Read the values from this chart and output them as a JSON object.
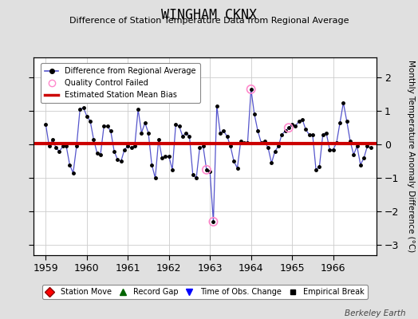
{
  "title": "WINGHAM CKNX",
  "subtitle": "Difference of Station Temperature Data from Regional Average",
  "ylabel": "Monthly Temperature Anomaly Difference (°C)",
  "footer": "Berkeley Earth",
  "xlim": [
    1958.7,
    1967.05
  ],
  "ylim": [
    -3.3,
    2.6
  ],
  "yticks": [
    -3,
    -2,
    -1,
    0,
    1,
    2
  ],
  "xticks": [
    1959,
    1960,
    1961,
    1962,
    1963,
    1964,
    1965,
    1966
  ],
  "bias_value": 0.04,
  "line_color": "#5555cc",
  "dot_color": "#000000",
  "qc_color": "#ff88cc",
  "bias_color": "#cc0000",
  "bg_color": "#e0e0e0",
  "plot_bg_color": "#ffffff",
  "grid_color": "#cccccc",
  "data": [
    [
      1959.0,
      0.6
    ],
    [
      1959.083,
      -0.05
    ],
    [
      1959.167,
      0.15
    ],
    [
      1959.25,
      -0.1
    ],
    [
      1959.333,
      -0.2
    ],
    [
      1959.417,
      -0.05
    ],
    [
      1959.5,
      -0.05
    ],
    [
      1959.583,
      -0.6
    ],
    [
      1959.667,
      -0.85
    ],
    [
      1959.75,
      -0.05
    ],
    [
      1959.833,
      1.05
    ],
    [
      1959.917,
      1.1
    ],
    [
      1960.0,
      0.85
    ],
    [
      1960.083,
      0.7
    ],
    [
      1960.167,
      0.15
    ],
    [
      1960.25,
      -0.25
    ],
    [
      1960.333,
      -0.3
    ],
    [
      1960.417,
      0.55
    ],
    [
      1960.5,
      0.55
    ],
    [
      1960.583,
      0.4
    ],
    [
      1960.667,
      -0.2
    ],
    [
      1960.75,
      -0.45
    ],
    [
      1960.833,
      -0.5
    ],
    [
      1960.917,
      -0.15
    ],
    [
      1961.0,
      -0.05
    ],
    [
      1961.083,
      -0.1
    ],
    [
      1961.167,
      -0.05
    ],
    [
      1961.25,
      1.05
    ],
    [
      1961.333,
      0.35
    ],
    [
      1961.417,
      0.65
    ],
    [
      1961.5,
      0.35
    ],
    [
      1961.583,
      -0.6
    ],
    [
      1961.667,
      -1.0
    ],
    [
      1961.75,
      0.15
    ],
    [
      1961.833,
      -0.4
    ],
    [
      1961.917,
      -0.35
    ],
    [
      1962.0,
      -0.35
    ],
    [
      1962.083,
      -0.75
    ],
    [
      1962.167,
      0.6
    ],
    [
      1962.25,
      0.55
    ],
    [
      1962.333,
      0.25
    ],
    [
      1962.417,
      0.35
    ],
    [
      1962.5,
      0.25
    ],
    [
      1962.583,
      -0.9
    ],
    [
      1962.667,
      -1.0
    ],
    [
      1962.75,
      -0.1
    ],
    [
      1962.833,
      -0.05
    ],
    [
      1962.917,
      -0.75
    ],
    [
      1963.0,
      -0.8
    ],
    [
      1963.083,
      -2.3
    ],
    [
      1963.167,
      1.15
    ],
    [
      1963.25,
      0.35
    ],
    [
      1963.333,
      0.4
    ],
    [
      1963.417,
      0.25
    ],
    [
      1963.5,
      -0.05
    ],
    [
      1963.583,
      -0.5
    ],
    [
      1963.667,
      -0.7
    ],
    [
      1963.75,
      0.1
    ],
    [
      1963.833,
      0.05
    ],
    [
      1963.917,
      0.05
    ],
    [
      1964.0,
      1.65
    ],
    [
      1964.083,
      0.9
    ],
    [
      1964.167,
      0.4
    ],
    [
      1964.25,
      0.05
    ],
    [
      1964.333,
      0.1
    ],
    [
      1964.417,
      -0.1
    ],
    [
      1964.5,
      -0.55
    ],
    [
      1964.583,
      -0.2
    ],
    [
      1964.667,
      -0.05
    ],
    [
      1964.75,
      0.3
    ],
    [
      1964.833,
      0.4
    ],
    [
      1964.917,
      0.5
    ],
    [
      1965.0,
      0.6
    ],
    [
      1965.083,
      0.55
    ],
    [
      1965.167,
      0.7
    ],
    [
      1965.25,
      0.75
    ],
    [
      1965.333,
      0.45
    ],
    [
      1965.417,
      0.3
    ],
    [
      1965.5,
      0.3
    ],
    [
      1965.583,
      -0.75
    ],
    [
      1965.667,
      -0.65
    ],
    [
      1965.75,
      0.3
    ],
    [
      1965.833,
      0.35
    ],
    [
      1965.917,
      -0.15
    ],
    [
      1966.0,
      -0.15
    ],
    [
      1966.083,
      0.05
    ],
    [
      1966.167,
      0.65
    ],
    [
      1966.25,
      1.25
    ],
    [
      1966.333,
      0.7
    ],
    [
      1966.417,
      0.1
    ],
    [
      1966.5,
      -0.3
    ],
    [
      1966.583,
      -0.05
    ],
    [
      1966.667,
      -0.6
    ],
    [
      1966.75,
      -0.4
    ],
    [
      1966.833,
      -0.05
    ],
    [
      1966.917,
      -0.1
    ]
  ],
  "qc_failed": [
    [
      1962.917,
      -0.75
    ],
    [
      1963.083,
      -2.3
    ],
    [
      1964.0,
      1.65
    ],
    [
      1964.917,
      0.5
    ]
  ]
}
